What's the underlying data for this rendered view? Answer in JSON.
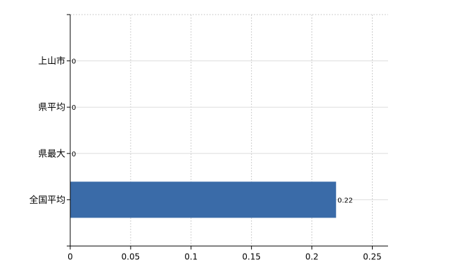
{
  "chart_data": {
    "type": "bar",
    "orientation": "horizontal",
    "categories": [
      "上山市",
      "県平均",
      "県最大",
      "全国平均"
    ],
    "values": [
      0,
      0,
      0,
      0.22
    ],
    "color": "#3a6ba8",
    "xlim": [
      0,
      0.263
    ],
    "xticks": [
      0,
      0.05,
      0.1,
      0.15,
      0.2,
      0.25
    ],
    "grid": true
  }
}
